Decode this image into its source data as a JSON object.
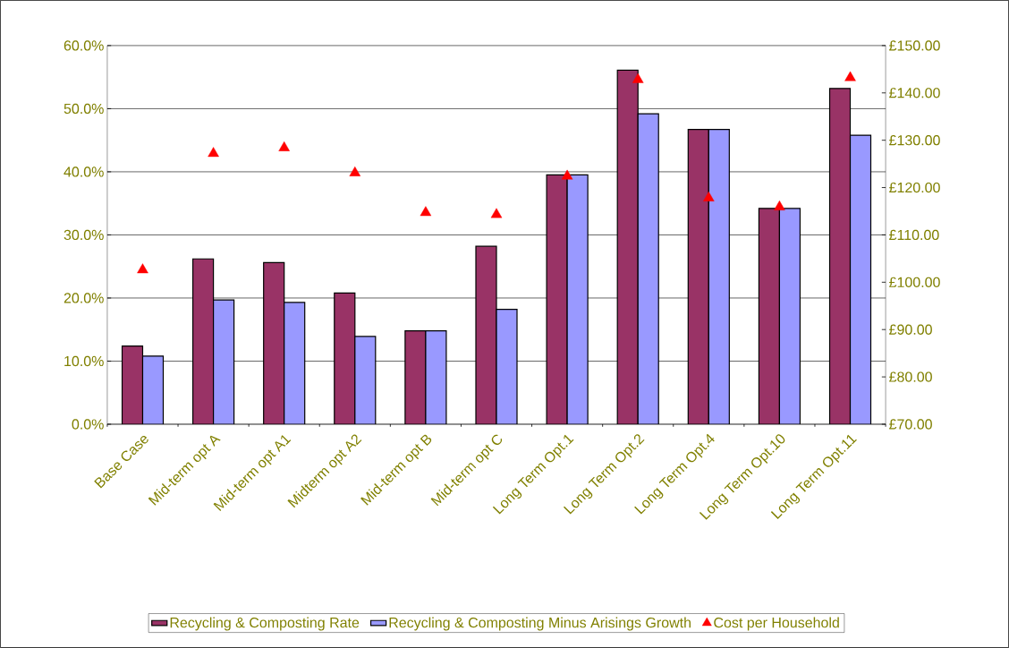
{
  "chart_data": {
    "type": "bar",
    "categories": [
      "Base Case",
      "Mid-term opt A",
      "Mid-term opt A1",
      "Midterm opt A2",
      "Mid-term opt B",
      "Mid-term opt C",
      "Long Term Opt.1",
      "Long Term Opt.2",
      "Long Term Opt.4",
      "Long Term Opt.10",
      "Long Term Opt.11"
    ],
    "series": [
      {
        "name": "Recycling & Composting Rate",
        "color": "#993366",
        "values": [
          12.4,
          26.2,
          25.6,
          20.8,
          14.8,
          28.2,
          39.5,
          56.1,
          46.7,
          34.2,
          53.2
        ]
      },
      {
        "name": "Recycling & Composting Minus Arisings Growth",
        "color": "#9999ff",
        "values": [
          10.8,
          19.7,
          19.3,
          13.9,
          14.8,
          18.2,
          39.5,
          49.2,
          46.7,
          34.2,
          45.8
        ]
      },
      {
        "name": "Cost per Household",
        "type": "scatter",
        "axis": "y2",
        "marker": "triangle",
        "color": "#ff0000",
        "values": [
          102.6,
          127.2,
          128.4,
          123.1,
          114.7,
          114.3,
          122.4,
          142.8,
          117.8,
          115.9,
          143.2
        ]
      }
    ],
    "ylim": [
      0,
      60
    ],
    "yticks": [
      {
        "value": 0,
        "label": "0.0%"
      },
      {
        "value": 10,
        "label": "10.0%"
      },
      {
        "value": 20,
        "label": "20.0%"
      },
      {
        "value": 30,
        "label": "30.0%"
      },
      {
        "value": 40,
        "label": "40.0%"
      },
      {
        "value": 50,
        "label": "50.0%"
      },
      {
        "value": 60,
        "label": "60.0%"
      }
    ],
    "y2lim": [
      70,
      150
    ],
    "y2ticks": [
      {
        "value": 70,
        "label": "£70.00"
      },
      {
        "value": 80,
        "label": "£80.00"
      },
      {
        "value": 90,
        "label": "£90.00"
      },
      {
        "value": 100,
        "label": "£100.00"
      },
      {
        "value": 110,
        "label": "£110.00"
      },
      {
        "value": 120,
        "label": "£120.00"
      },
      {
        "value": 130,
        "label": "£130.00"
      },
      {
        "value": 140,
        "label": "£140.00"
      },
      {
        "value": 150,
        "label": "£150.00"
      }
    ],
    "grid": "y",
    "legend": "bottom"
  }
}
